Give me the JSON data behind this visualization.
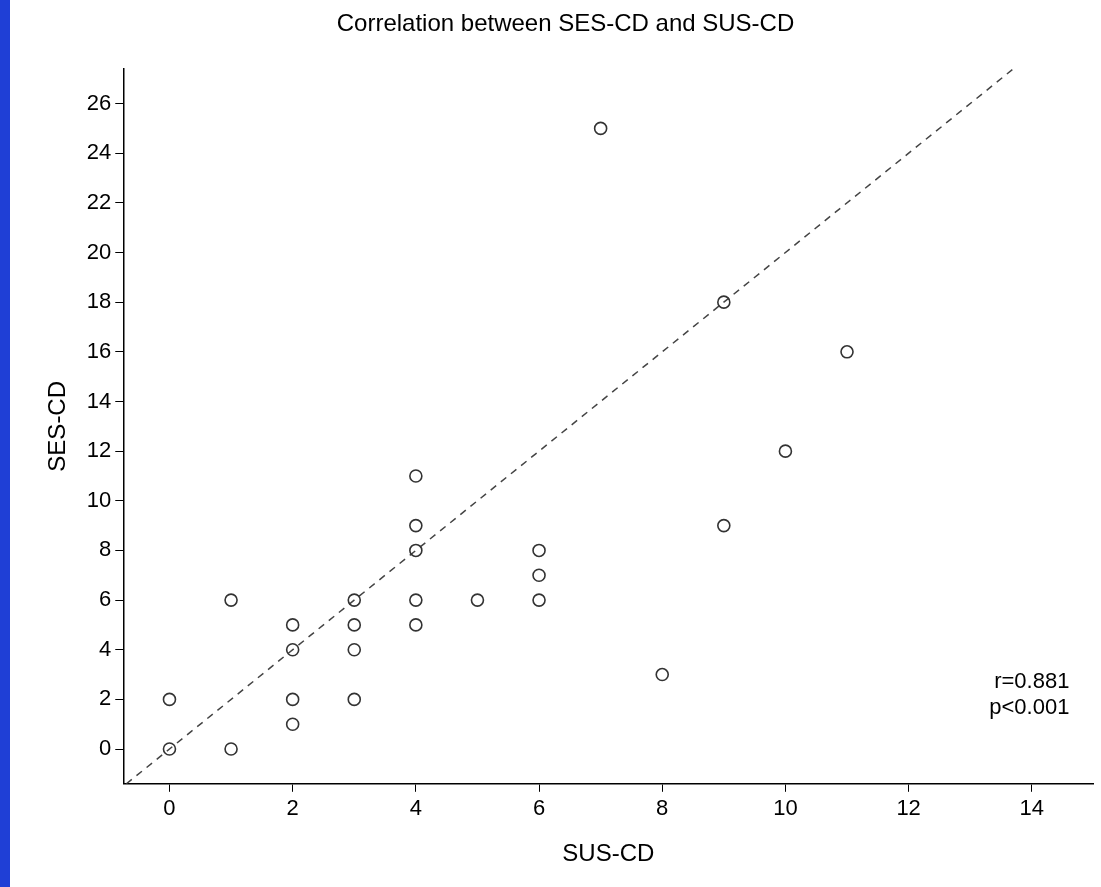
{
  "chart_data": {
    "type": "scatter",
    "title": "Correlation between SES-CD and SUS-CD",
    "xlabel": "SUS-CD",
    "ylabel": "SES-CD",
    "xlim": [
      -0.75,
      15
    ],
    "xticks": [
      0,
      2,
      4,
      6,
      8,
      10,
      12,
      14
    ],
    "ylim": [
      -1.4,
      27.4
    ],
    "yticks": [
      0,
      2,
      4,
      6,
      8,
      10,
      12,
      14,
      16,
      18,
      20,
      22,
      24,
      26
    ],
    "grid": false,
    "legend": false,
    "marker": "circle",
    "series": [
      {
        "color": "#333333",
        "x": [
          0,
          0,
          1,
          1,
          2,
          2,
          2,
          2,
          3,
          3,
          3,
          3,
          4,
          4,
          4,
          4,
          4,
          5,
          6,
          6,
          6,
          7,
          8,
          9,
          9,
          10,
          11
        ],
        "values": [
          0,
          2,
          0,
          6,
          1,
          2,
          4,
          5,
          2,
          4,
          5,
          6,
          5,
          6,
          8,
          9,
          11,
          6,
          6,
          7,
          8,
          25,
          3,
          9,
          18,
          12,
          16
        ]
      },
      {
        "type": "line",
        "color": "#444444",
        "marker": "none",
        "line_style": "dashed",
        "x": [
          -0.7,
          13.7
        ],
        "values": [
          -1.4,
          27.4
        ]
      }
    ],
    "annotations": [
      "r=0.881",
      "p<0.001"
    ]
  }
}
